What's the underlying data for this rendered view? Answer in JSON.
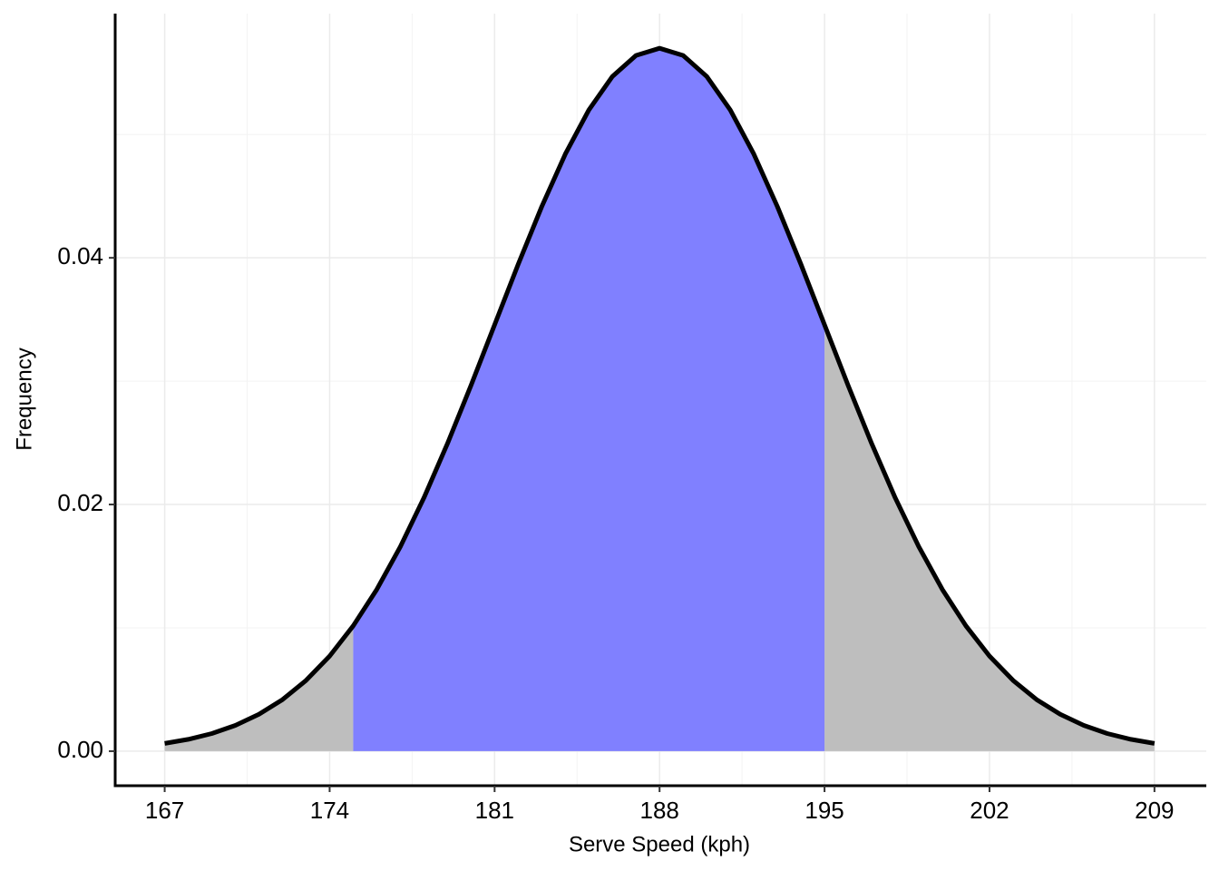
{
  "chart_data": {
    "type": "density",
    "x_label": "Serve Speed (kph)",
    "y_label": "Frequency",
    "x": [
      167,
      168,
      169,
      170,
      171,
      172,
      173,
      174,
      175,
      176,
      177,
      178,
      179,
      180,
      181,
      182,
      183,
      184,
      185,
      186,
      187,
      188,
      189,
      190,
      191,
      192,
      193,
      194,
      195,
      196,
      197,
      198,
      199,
      200,
      201,
      202,
      203,
      204,
      205,
      206,
      207,
      208,
      209
    ],
    "values": [
      0.00063,
      0.00096,
      0.00143,
      0.00209,
      0.00299,
      0.00418,
      0.00574,
      0.00771,
      0.01016,
      0.01311,
      0.01658,
      0.02054,
      0.02494,
      0.02966,
      0.03457,
      0.03947,
      0.04415,
      0.04841,
      0.05199,
      0.05471,
      0.05641,
      0.05699,
      0.05641,
      0.05471,
      0.05199,
      0.04841,
      0.04415,
      0.03947,
      0.03457,
      0.02966,
      0.02494,
      0.02054,
      0.01658,
      0.01311,
      0.01016,
      0.00771,
      0.00574,
      0.00418,
      0.00299,
      0.00209,
      0.00143,
      0.00096,
      0.00063
    ],
    "highlight_range": [
      175,
      195
    ],
    "highlight_color": "#8080ff",
    "fill_color": "#bebebe",
    "line_color": "#000000",
    "xlim": [
      164.9,
      211.2
    ],
    "ylim": [
      -0.0028,
      0.0598
    ],
    "xticks": [
      167,
      174,
      181,
      188,
      195,
      202,
      209
    ],
    "xminor": [
      170.5,
      177.5,
      184.5,
      191.5,
      198.5,
      205.5
    ],
    "yticks": [
      {
        "value": 0,
        "label": "0.00"
      },
      0.02,
      0.04
    ],
    "yminor": [
      0.01,
      0.03,
      0.05
    ],
    "grid": true
  }
}
